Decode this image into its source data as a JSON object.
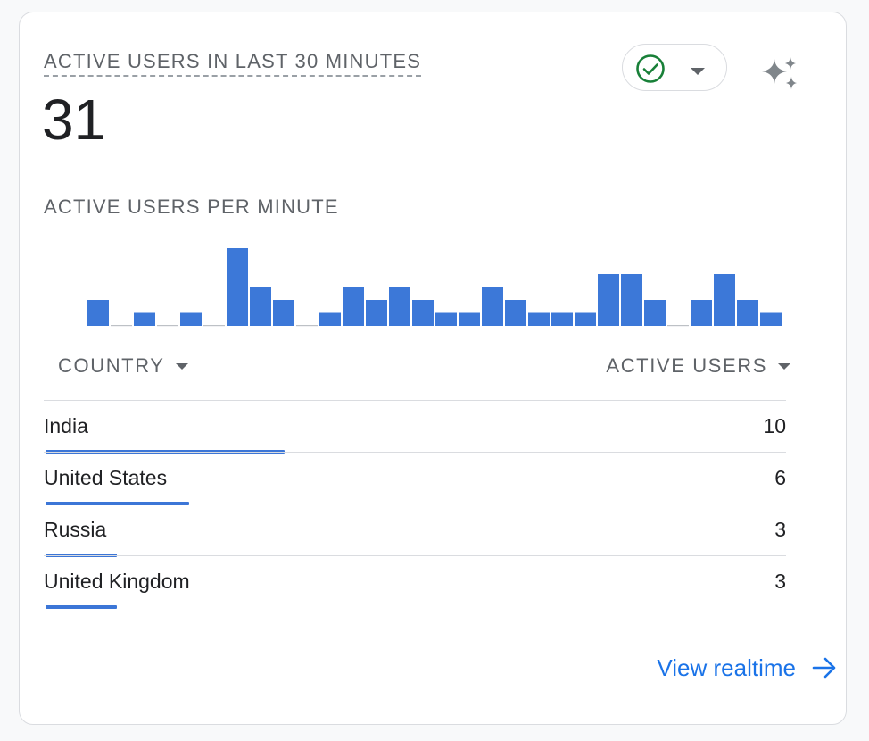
{
  "card": {
    "title": "ACTIVE USERS IN LAST 30 MINUTES",
    "active_users": "31",
    "subtitle": "ACTIVE USERS PER MINUTE",
    "status_icon": "check-circle-icon",
    "sparkle_icon": "sparkle-icon",
    "accent": "#3c78d8"
  },
  "chart_data": {
    "type": "bar",
    "series": [
      {
        "values": [
          2,
          0,
          1,
          0,
          1,
          0,
          6,
          3,
          2,
          0,
          1,
          3,
          2,
          3,
          2,
          1,
          1,
          3,
          2,
          1,
          1,
          1,
          4,
          4,
          2,
          0,
          2,
          4,
          2,
          1
        ]
      }
    ]
  },
  "table": {
    "headers": {
      "country": "COUNTRY",
      "active_users": "ACTIVE USERS"
    },
    "rows": [
      {
        "country": "India",
        "users": "10",
        "share": 1.0
      },
      {
        "country": "United States",
        "users": "6",
        "share": 0.6
      },
      {
        "country": "Russia",
        "users": "3",
        "share": 0.3
      },
      {
        "country": "United Kingdom",
        "users": "3",
        "share": 0.3
      }
    ]
  },
  "footer": {
    "link": "View realtime"
  }
}
